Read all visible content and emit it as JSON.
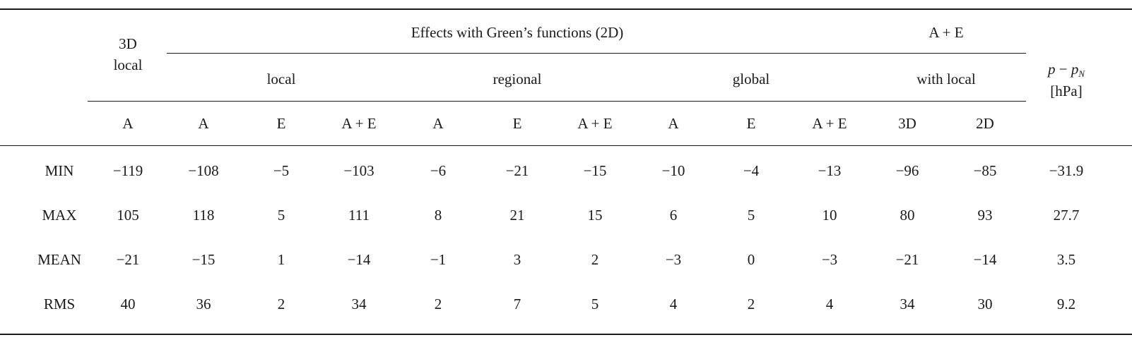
{
  "table": {
    "header_3d": [
      "3D",
      "local"
    ],
    "header_effects": "Effects with Green’s functions (2D)",
    "header_ae": "A + E",
    "header_p": {
      "p": "p",
      "minus": " − ",
      "pn": "p",
      "sub": "N",
      "unit": "[hPa]"
    },
    "groups": [
      "local",
      "regional",
      "global",
      "with local"
    ],
    "subcols": [
      "A",
      "A",
      "E",
      "A + E",
      "A",
      "E",
      "A + E",
      "A",
      "E",
      "A + E",
      "3D",
      "2D"
    ],
    "rows": [
      {
        "label": "MIN",
        "values": [
          "−119",
          "−108",
          "−5",
          "−103",
          "−6",
          "−21",
          "−15",
          "−10",
          "−4",
          "−13",
          "−96",
          "−85",
          "−31.9"
        ]
      },
      {
        "label": "MAX",
        "values": [
          "105",
          "118",
          "5",
          "111",
          "8",
          "21",
          "15",
          "6",
          "5",
          "10",
          "80",
          "93",
          "27.7"
        ]
      },
      {
        "label": "MEAN",
        "values": [
          "−21",
          "−15",
          "1",
          "−14",
          "−1",
          "3",
          "2",
          "−3",
          "0",
          "−3",
          "−21",
          "−14",
          "3.5"
        ]
      },
      {
        "label": "RMS",
        "values": [
          "40",
          "36",
          "2",
          "34",
          "2",
          "7",
          "5",
          "4",
          "2",
          "4",
          "34",
          "30",
          "9.2"
        ]
      }
    ]
  }
}
